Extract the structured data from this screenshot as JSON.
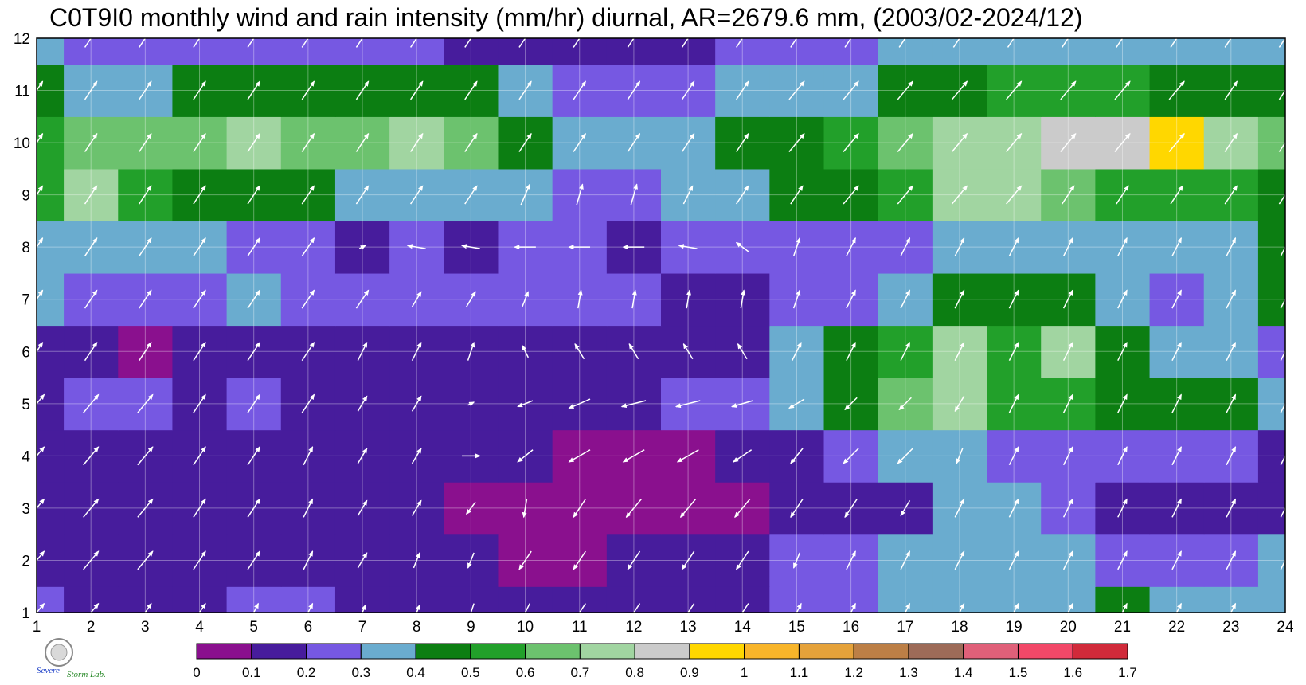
{
  "chart_data": {
    "type": "heatmap",
    "title": "C0T9I0 monthly wind and rain intensity (mm/hr) diurnal, AR=2679.6 mm, (2003/02-2024/12)",
    "x": [
      1,
      2,
      3,
      4,
      5,
      6,
      7,
      8,
      9,
      10,
      11,
      12,
      13,
      14,
      15,
      16,
      17,
      18,
      19,
      20,
      21,
      22,
      23,
      24
    ],
    "y": [
      1,
      2,
      3,
      4,
      5,
      6,
      7,
      8,
      9,
      10,
      11,
      12
    ],
    "xlim": [
      1,
      24
    ],
    "ylim": [
      1,
      12
    ],
    "grid": true,
    "colorbar": {
      "levels": [
        0,
        0.1,
        0.2,
        0.3,
        0.4,
        0.5,
        0.6,
        0.7,
        0.8,
        0.9,
        1,
        1.1,
        1.2,
        1.3,
        1.4,
        1.5,
        1.6,
        1.7
      ],
      "tick_labels": [
        "0",
        "0.1",
        "0.2",
        "0.3",
        "0.4",
        "0.5",
        "0.6",
        "0.7",
        "0.8",
        "0.9",
        "1",
        "1.1",
        "1.2",
        "1.3",
        "1.4",
        "1.5",
        "1.6",
        "1.7"
      ],
      "colors": [
        "#8a108e",
        "#471c9c",
        "#7658e2",
        "#6aaccf",
        "#0c7e12",
        "#22a02a",
        "#6cc26e",
        "#a1d5a1",
        "#cbcbcb",
        "#ffd700",
        "#f8b52a",
        "#e5a23a",
        "#bc7f46",
        "#9d6b58",
        "#e06079",
        "#f24868",
        "#d12a3a"
      ]
    },
    "z": [
      [
        0.25,
        0.15,
        0.15,
        0.15,
        0.2,
        0.2,
        0.15,
        0.15,
        0.15,
        0.15,
        0.15,
        0.15,
        0.15,
        0.15,
        0.25,
        0.25,
        0.3,
        0.3,
        0.3,
        0.3,
        0.4,
        0.35,
        0.3,
        0.35
      ],
      [
        0.15,
        0.15,
        0.15,
        0.15,
        0.15,
        0.15,
        0.15,
        0.15,
        0.15,
        0.05,
        0.05,
        0.15,
        0.15,
        0.15,
        0.2,
        0.25,
        0.3,
        0.3,
        0.3,
        0.3,
        0.25,
        0.25,
        0.25,
        0.3
      ],
      [
        0.15,
        0.15,
        0.15,
        0.15,
        0.15,
        0.15,
        0.15,
        0.15,
        0.05,
        0.05,
        0.05,
        0.05,
        0.05,
        0.05,
        0.15,
        0.15,
        0.15,
        0.3,
        0.3,
        0.25,
        0.15,
        0.15,
        0.15,
        0.15
      ],
      [
        0.15,
        0.15,
        0.15,
        0.15,
        0.15,
        0.15,
        0.15,
        0.15,
        0.15,
        0.15,
        0.05,
        0.05,
        0.05,
        0.15,
        0.15,
        0.2,
        0.3,
        0.3,
        0.25,
        0.25,
        0.25,
        0.2,
        0.2,
        0.15
      ],
      [
        0.15,
        0.25,
        0.25,
        0.15,
        0.25,
        0.15,
        0.15,
        0.15,
        0.15,
        0.15,
        0.15,
        0.15,
        0.25,
        0.25,
        0.35,
        0.45,
        0.65,
        0.75,
        0.55,
        0.5,
        0.45,
        0.45,
        0.4,
        0.35
      ],
      [
        0.15,
        0.15,
        0.05,
        0.15,
        0.15,
        0.15,
        0.15,
        0.15,
        0.15,
        0.15,
        0.15,
        0.15,
        0.15,
        0.15,
        0.35,
        0.45,
        0.55,
        0.75,
        0.55,
        0.7,
        0.45,
        0.35,
        0.35,
        0.25
      ],
      [
        0.35,
        0.25,
        0.25,
        0.25,
        0.35,
        0.25,
        0.25,
        0.25,
        0.25,
        0.25,
        0.25,
        0.25,
        0.15,
        0.15,
        0.25,
        0.25,
        0.35,
        0.45,
        0.45,
        0.45,
        0.35,
        0.25,
        0.35,
        0.45
      ],
      [
        0.35,
        0.35,
        0.35,
        0.35,
        0.25,
        0.25,
        0.15,
        0.25,
        0.15,
        0.25,
        0.25,
        0.15,
        0.25,
        0.25,
        0.25,
        0.25,
        0.25,
        0.35,
        0.35,
        0.35,
        0.35,
        0.35,
        0.35,
        0.45
      ],
      [
        0.55,
        0.75,
        0.55,
        0.45,
        0.45,
        0.45,
        0.35,
        0.35,
        0.35,
        0.35,
        0.25,
        0.25,
        0.35,
        0.35,
        0.45,
        0.45,
        0.55,
        0.75,
        0.75,
        0.65,
        0.55,
        0.55,
        0.55,
        0.45
      ],
      [
        0.55,
        0.65,
        0.65,
        0.65,
        0.75,
        0.65,
        0.65,
        0.75,
        0.65,
        0.45,
        0.35,
        0.35,
        0.35,
        0.45,
        0.45,
        0.55,
        0.65,
        0.75,
        0.75,
        0.85,
        0.85,
        0.95,
        0.75,
        0.65
      ],
      [
        0.45,
        0.35,
        0.35,
        0.45,
        0.45,
        0.45,
        0.45,
        0.45,
        0.45,
        0.35,
        0.25,
        0.25,
        0.25,
        0.35,
        0.35,
        0.35,
        0.45,
        0.45,
        0.55,
        0.55,
        0.55,
        0.45,
        0.45,
        0.45
      ],
      [
        0.35,
        0.25,
        0.25,
        0.25,
        0.25,
        0.25,
        0.25,
        0.25,
        0.15,
        0.15,
        0.15,
        0.15,
        0.15,
        0.25,
        0.25,
        0.25,
        0.35,
        0.35,
        0.35,
        0.35,
        0.35,
        0.35,
        0.35,
        0.35
      ]
    ],
    "wind": {
      "u": [
        [
          0.5,
          0.5,
          0.4,
          0.4,
          0.3,
          0.3,
          0.2,
          0.2,
          -0.2,
          -0.3,
          -0.4,
          -0.4,
          -0.4,
          -0.4,
          0.3,
          0.3,
          0.3,
          0.3,
          0.3,
          0.3,
          0.3,
          0.3,
          0.3,
          0.3
        ],
        [
          0.5,
          0.5,
          0.5,
          0.4,
          0.4,
          0.3,
          0.3,
          0.2,
          -0.2,
          -0.4,
          -0.4,
          -0.4,
          -0.4,
          -0.4,
          -0.2,
          0.3,
          0.3,
          0.3,
          0.3,
          0.3,
          0.3,
          0.3,
          0.3,
          0.3
        ],
        [
          0.5,
          0.5,
          0.5,
          0.4,
          0.4,
          0.3,
          0.3,
          0.3,
          -0.3,
          -0.1,
          -0.4,
          -0.5,
          -0.5,
          -0.5,
          -0.4,
          -0.4,
          -0.3,
          0.3,
          0.3,
          0.3,
          0.3,
          0.3,
          0.3,
          0.3
        ],
        [
          0.5,
          0.5,
          0.5,
          0.4,
          0.4,
          0.3,
          0.3,
          0.3,
          0.6,
          -0.5,
          -0.7,
          -0.7,
          -0.7,
          -0.6,
          -0.4,
          -0.5,
          -0.5,
          -0.2,
          0.3,
          0.3,
          0.3,
          0.3,
          0.3,
          0.3
        ],
        [
          0.5,
          0.5,
          0.5,
          0.4,
          0.4,
          0.4,
          0.3,
          0.3,
          0.2,
          -0.5,
          -0.7,
          -0.8,
          -0.8,
          -0.7,
          -0.5,
          -0.4,
          -0.4,
          -0.3,
          0.3,
          0.3,
          0.3,
          0.3,
          0.3,
          0.3
        ],
        [
          0.4,
          0.4,
          0.4,
          0.4,
          0.4,
          0.4,
          0.3,
          0.3,
          0.2,
          -0.2,
          -0.3,
          -0.3,
          -0.3,
          -0.3,
          0.3,
          0.3,
          0.3,
          0.3,
          0.3,
          0.3,
          0.3,
          0.3,
          0.3,
          0.3
        ],
        [
          0.4,
          0.4,
          0.4,
          0.4,
          0.4,
          0.4,
          0.4,
          0.3,
          0.3,
          0.2,
          0.1,
          0.1,
          0.1,
          0.1,
          0.2,
          0.3,
          0.3,
          0.3,
          0.3,
          0.3,
          0.3,
          0.3,
          0.3,
          0.3
        ],
        [
          0.4,
          0.4,
          0.4,
          0.4,
          0.4,
          0.4,
          0.2,
          -0.6,
          -0.6,
          -0.7,
          -0.7,
          -0.7,
          -0.6,
          -0.4,
          0.2,
          0.3,
          0.3,
          0.3,
          0.3,
          0.3,
          0.3,
          0.3,
          0.3,
          0.3
        ],
        [
          0.4,
          0.4,
          0.4,
          0.4,
          0.4,
          0.4,
          0.4,
          0.4,
          0.4,
          0.3,
          0.2,
          0.2,
          0.3,
          0.4,
          0.4,
          0.5,
          0.5,
          0.5,
          0.5,
          0.4,
          0.4,
          0.4,
          0.4,
          0.4
        ],
        [
          0.4,
          0.4,
          0.4,
          0.4,
          0.4,
          0.4,
          0.4,
          0.4,
          0.4,
          0.4,
          0.4,
          0.4,
          0.4,
          0.4,
          0.5,
          0.5,
          0.5,
          0.5,
          0.5,
          0.5,
          0.5,
          0.5,
          0.4,
          0.4
        ],
        [
          0.4,
          0.4,
          0.4,
          0.4,
          0.4,
          0.4,
          0.4,
          0.4,
          0.4,
          0.4,
          0.4,
          0.4,
          0.4,
          0.4,
          0.5,
          0.5,
          0.5,
          0.5,
          0.5,
          0.5,
          0.5,
          0.5,
          0.4,
          0.4
        ],
        [
          0.4,
          0.4,
          0.4,
          0.4,
          0.4,
          0.4,
          0.4,
          0.4,
          0.4,
          0.4,
          0.4,
          0.4,
          0.4,
          0.4,
          0.4,
          0.4,
          0.4,
          0.4,
          0.4,
          0.4,
          0.4,
          0.4,
          0.4,
          0.4
        ]
      ],
      "v": [
        [
          0.6,
          0.6,
          0.6,
          0.6,
          0.6,
          0.6,
          0.5,
          0.5,
          -0.6,
          -0.6,
          -0.6,
          -0.6,
          -0.6,
          -0.6,
          0.6,
          0.6,
          0.6,
          0.6,
          0.6,
          0.6,
          0.6,
          0.6,
          0.6,
          0.6
        ],
        [
          0.6,
          0.6,
          0.6,
          0.6,
          0.6,
          0.6,
          0.5,
          0.5,
          -0.5,
          -0.6,
          -0.6,
          -0.6,
          -0.6,
          -0.6,
          -0.5,
          0.6,
          0.6,
          0.6,
          0.6,
          0.6,
          0.6,
          0.6,
          0.6,
          0.6
        ],
        [
          0.6,
          0.6,
          0.6,
          0.6,
          0.6,
          0.6,
          0.5,
          0.5,
          -0.4,
          -0.6,
          -0.6,
          -0.6,
          -0.6,
          -0.6,
          -0.6,
          -0.6,
          -0.5,
          0.6,
          0.6,
          0.6,
          0.6,
          0.6,
          0.6,
          0.6
        ],
        [
          0.6,
          0.6,
          0.6,
          0.6,
          0.6,
          0.6,
          0.5,
          0.5,
          0.0,
          -0.4,
          -0.4,
          -0.4,
          -0.4,
          -0.4,
          -0.5,
          -0.5,
          -0.5,
          -0.5,
          0.6,
          0.6,
          0.6,
          0.6,
          0.6,
          0.6
        ],
        [
          0.6,
          0.6,
          0.6,
          0.6,
          0.6,
          0.6,
          0.5,
          0.5,
          0.1,
          -0.2,
          -0.3,
          -0.2,
          -0.2,
          -0.2,
          -0.3,
          -0.4,
          -0.4,
          -0.5,
          0.6,
          0.6,
          0.6,
          0.6,
          0.6,
          0.6
        ],
        [
          0.6,
          0.6,
          0.6,
          0.6,
          0.6,
          0.6,
          0.6,
          0.6,
          0.6,
          0.4,
          0.5,
          0.5,
          0.5,
          0.5,
          0.6,
          0.6,
          0.6,
          0.6,
          0.6,
          0.6,
          0.6,
          0.6,
          0.6,
          0.6
        ],
        [
          0.6,
          0.6,
          0.6,
          0.6,
          0.6,
          0.6,
          0.6,
          0.5,
          0.5,
          0.5,
          0.6,
          0.6,
          0.6,
          0.6,
          0.6,
          0.6,
          0.6,
          0.6,
          0.6,
          0.6,
          0.6,
          0.6,
          0.6,
          0.6
        ],
        [
          0.6,
          0.6,
          0.6,
          0.6,
          0.6,
          0.6,
          0.1,
          0.1,
          0.1,
          0.0,
          0.0,
          0.0,
          0.1,
          0.3,
          0.6,
          0.6,
          0.6,
          0.6,
          0.6,
          0.6,
          0.6,
          0.6,
          0.6,
          0.6
        ],
        [
          0.6,
          0.6,
          0.6,
          0.6,
          0.6,
          0.6,
          0.6,
          0.6,
          0.6,
          0.7,
          0.7,
          0.7,
          0.6,
          0.6,
          0.6,
          0.6,
          0.6,
          0.6,
          0.6,
          0.6,
          0.6,
          0.6,
          0.6,
          0.6
        ],
        [
          0.6,
          0.6,
          0.6,
          0.6,
          0.6,
          0.6,
          0.6,
          0.6,
          0.6,
          0.6,
          0.6,
          0.6,
          0.6,
          0.6,
          0.6,
          0.6,
          0.6,
          0.6,
          0.6,
          0.6,
          0.6,
          0.6,
          0.6,
          0.6
        ],
        [
          0.6,
          0.6,
          0.6,
          0.6,
          0.6,
          0.6,
          0.6,
          0.6,
          0.6,
          0.6,
          0.6,
          0.6,
          0.6,
          0.6,
          0.6,
          0.6,
          0.6,
          0.6,
          0.6,
          0.6,
          0.6,
          0.6,
          0.6,
          0.6
        ],
        [
          0.6,
          0.6,
          0.6,
          0.6,
          0.6,
          0.6,
          0.6,
          0.6,
          0.6,
          0.6,
          0.6,
          0.6,
          0.6,
          0.6,
          0.6,
          0.6,
          0.6,
          0.6,
          0.6,
          0.6,
          0.6,
          0.6,
          0.6,
          0.6
        ]
      ]
    }
  },
  "logo": {
    "text_top": "Severe",
    "text_bottom": "Storm Lab."
  }
}
